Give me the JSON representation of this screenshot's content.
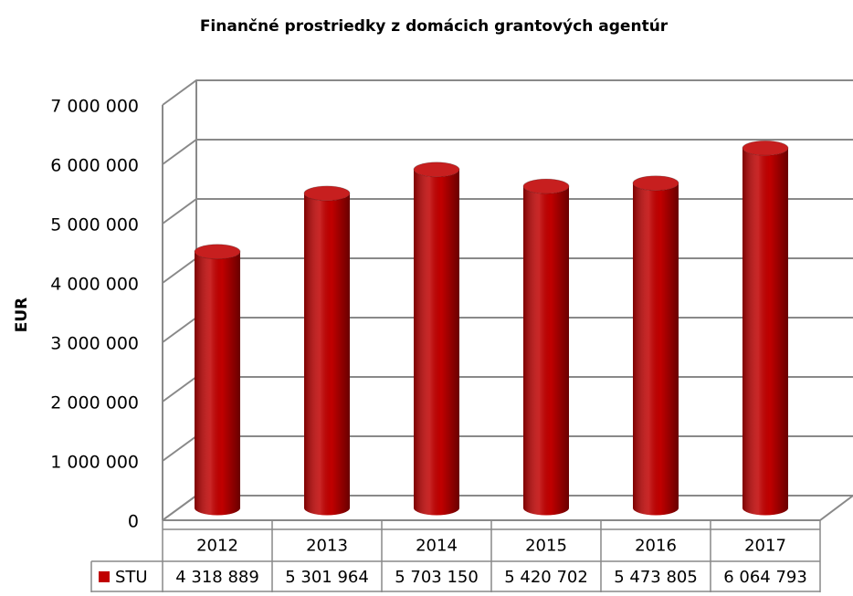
{
  "chart_data": {
    "type": "bar",
    "title": "Finančné prostriedky z domácich grantových agentúr",
    "y_label": "EUR",
    "categories": [
      "2012",
      "2013",
      "2014",
      "2015",
      "2016",
      "2017"
    ],
    "series": [
      {
        "name": "STU",
        "color": "#c00000",
        "values": [
          4318889,
          5301964,
          5703150,
          5420702,
          5473805,
          6064793
        ],
        "value_labels": [
          "4 318 889",
          "5 301 964",
          "5 703 150",
          "5 420 702",
          "5 473 805",
          "6 064 793"
        ]
      }
    ],
    "ylim": [
      0,
      7000000
    ],
    "yticks": [
      {
        "value": 0,
        "label": "0"
      },
      {
        "value": 1000000,
        "label": "1 000 000"
      },
      {
        "value": 2000000,
        "label": "2 000 000"
      },
      {
        "value": 3000000,
        "label": "3 000 000"
      },
      {
        "value": 4000000,
        "label": "4 000 000"
      },
      {
        "value": 5000000,
        "label": "5 000 000"
      },
      {
        "value": 6000000,
        "label": "6 000 000"
      },
      {
        "value": 7000000,
        "label": "7 000 000"
      }
    ],
    "grid": true
  }
}
